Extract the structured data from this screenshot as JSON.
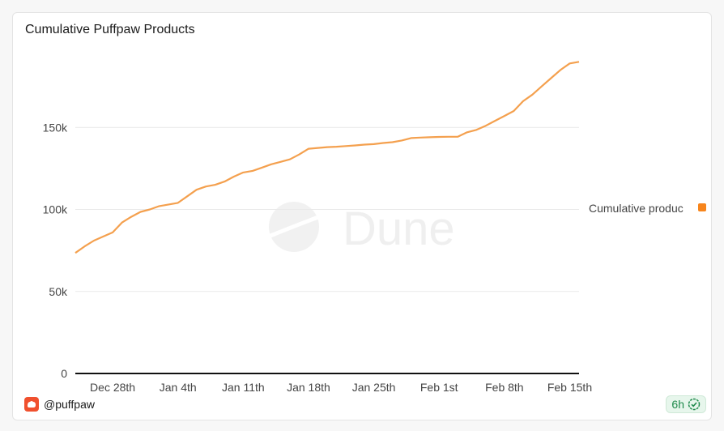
{
  "header": {
    "title": "Cumulative Puffpaw Products"
  },
  "footer": {
    "author": "@puffpaw",
    "freshness": "6h"
  },
  "watermark": {
    "text": "Dune"
  },
  "colors": {
    "series": "#f4a04e",
    "legend_marker": "#f7851c",
    "badge_text": "#1f8a4c"
  },
  "icons": {
    "avatar": "puffpaw-logo-icon",
    "badge": "check-circle-icon"
  },
  "chart_data": {
    "type": "line",
    "title": "Cumulative Puffpaw Products",
    "xlabel": "",
    "ylabel": "",
    "x_domain": [
      "2024-12-24",
      "2025-02-16"
    ],
    "ylim": [
      0,
      200000
    ],
    "y_ticks": [
      0,
      50000,
      100000,
      150000
    ],
    "y_tick_labels": [
      "0",
      "50k",
      "100k",
      "150k"
    ],
    "x_ticks": [
      "2024-12-28",
      "2025-01-04",
      "2025-01-11",
      "2025-01-18",
      "2025-01-25",
      "2025-02-01",
      "2025-02-08",
      "2025-02-15"
    ],
    "x_tick_labels": [
      "Dec 28th",
      "Jan 4th",
      "Jan 11th",
      "Jan 18th",
      "Jan 25th",
      "Feb 1st",
      "Feb 8th",
      "Feb 15th"
    ],
    "grid": true,
    "legend": "right",
    "series": [
      {
        "name": "Cumulative produc",
        "x": [
          "2024-12-24",
          "2024-12-25",
          "2024-12-26",
          "2024-12-27",
          "2024-12-28",
          "2024-12-29",
          "2024-12-30",
          "2024-12-31",
          "2025-01-01",
          "2025-01-02",
          "2025-01-03",
          "2025-01-04",
          "2025-01-05",
          "2025-01-06",
          "2025-01-07",
          "2025-01-08",
          "2025-01-09",
          "2025-01-10",
          "2025-01-11",
          "2025-01-12",
          "2025-01-13",
          "2025-01-14",
          "2025-01-15",
          "2025-01-16",
          "2025-01-17",
          "2025-01-18",
          "2025-01-19",
          "2025-01-20",
          "2025-01-21",
          "2025-01-22",
          "2025-01-23",
          "2025-01-24",
          "2025-01-25",
          "2025-01-26",
          "2025-01-27",
          "2025-01-28",
          "2025-01-29",
          "2025-01-30",
          "2025-01-31",
          "2025-02-01",
          "2025-02-02",
          "2025-02-03",
          "2025-02-04",
          "2025-02-05",
          "2025-02-06",
          "2025-02-07",
          "2025-02-08",
          "2025-02-09",
          "2025-02-10",
          "2025-02-11",
          "2025-02-12",
          "2025-02-13",
          "2025-02-14",
          "2025-02-15",
          "2025-02-16"
        ],
        "values": [
          73500,
          77500,
          81000,
          83500,
          86000,
          92000,
          95500,
          98500,
          100000,
          102000,
          103000,
          104000,
          108000,
          112000,
          114000,
          115000,
          117000,
          120000,
          122500,
          123500,
          125500,
          127500,
          129000,
          130500,
          133500,
          137000,
          137500,
          138000,
          138200,
          138600,
          139000,
          139500,
          139800,
          140500,
          141000,
          142000,
          143500,
          143800,
          144000,
          144200,
          144300,
          144300,
          147000,
          148500,
          151000,
          154000,
          157000,
          160000,
          166000,
          170000,
          175000,
          180000,
          185000,
          189000,
          190000
        ]
      }
    ]
  }
}
